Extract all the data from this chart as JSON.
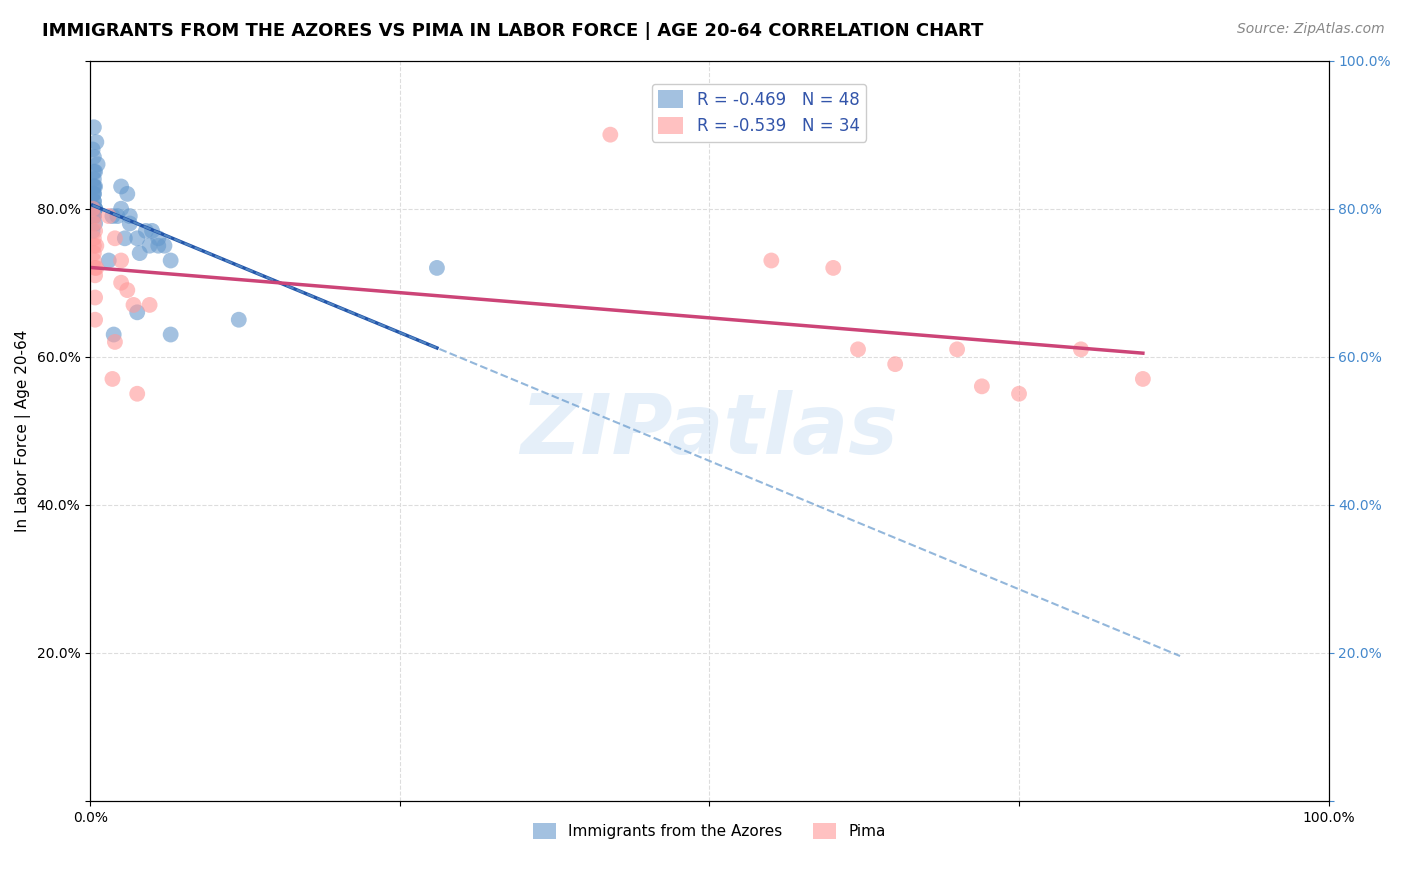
{
  "title": "IMMIGRANTS FROM THE AZORES VS PIMA IN LABOR FORCE | AGE 20-64 CORRELATION CHART",
  "source": "Source: ZipAtlas.com",
  "ylabel": "In Labor Force | Age 20-64",
  "xlim": [
    0,
    1.0
  ],
  "ylim": [
    0,
    1.0
  ],
  "background_color": "#ffffff",
  "grid_color": "#dddddd",
  "legend_r1": "R = -0.469",
  "legend_n1": "N = 48",
  "legend_r2": "R = -0.539",
  "legend_n2": "N = 34",
  "blue_color": "#6699cc",
  "pink_color": "#ff9999",
  "blue_line_color": "#2255aa",
  "pink_line_color": "#cc4477",
  "watermark": "ZIPatlas",
  "azores_x": [
    0.002,
    0.003,
    0.004,
    0.003,
    0.005,
    0.006,
    0.004,
    0.003,
    0.003,
    0.002,
    0.002,
    0.003,
    0.004,
    0.003,
    0.003,
    0.002,
    0.003,
    0.004,
    0.003,
    0.002,
    0.003,
    0.004,
    0.003,
    0.003,
    0.004,
    0.025,
    0.03,
    0.038,
    0.05,
    0.06,
    0.022,
    0.028,
    0.065,
    0.055,
    0.04,
    0.032,
    0.018,
    0.045,
    0.055,
    0.048,
    0.025,
    0.032,
    0.019,
    0.015,
    0.038,
    0.28,
    0.12,
    0.065
  ],
  "azores_y": [
    0.88,
    0.91,
    0.85,
    0.87,
    0.89,
    0.86,
    0.83,
    0.84,
    0.85,
    0.82,
    0.8,
    0.83,
    0.78,
    0.81,
    0.79,
    0.79,
    0.82,
    0.8,
    0.79,
    0.77,
    0.82,
    0.8,
    0.83,
    0.81,
    0.8,
    0.83,
    0.82,
    0.76,
    0.77,
    0.75,
    0.79,
    0.76,
    0.73,
    0.75,
    0.74,
    0.78,
    0.79,
    0.77,
    0.76,
    0.75,
    0.8,
    0.79,
    0.63,
    0.73,
    0.66,
    0.72,
    0.65,
    0.63
  ],
  "pima_x": [
    0.002,
    0.003,
    0.003,
    0.004,
    0.004,
    0.005,
    0.003,
    0.003,
    0.004,
    0.003,
    0.003,
    0.004,
    0.005,
    0.004,
    0.015,
    0.02,
    0.025,
    0.03,
    0.035,
    0.025,
    0.02,
    0.018,
    0.048,
    0.038,
    0.42,
    0.55,
    0.6,
    0.62,
    0.65,
    0.7,
    0.72,
    0.75,
    0.8,
    0.85
  ],
  "pima_y": [
    0.8,
    0.75,
    0.78,
    0.72,
    0.77,
    0.75,
    0.74,
    0.76,
    0.71,
    0.73,
    0.79,
    0.68,
    0.72,
    0.65,
    0.79,
    0.76,
    0.73,
    0.69,
    0.67,
    0.7,
    0.62,
    0.57,
    0.67,
    0.55,
    0.9,
    0.73,
    0.72,
    0.61,
    0.59,
    0.61,
    0.56,
    0.55,
    0.61,
    0.57
  ]
}
